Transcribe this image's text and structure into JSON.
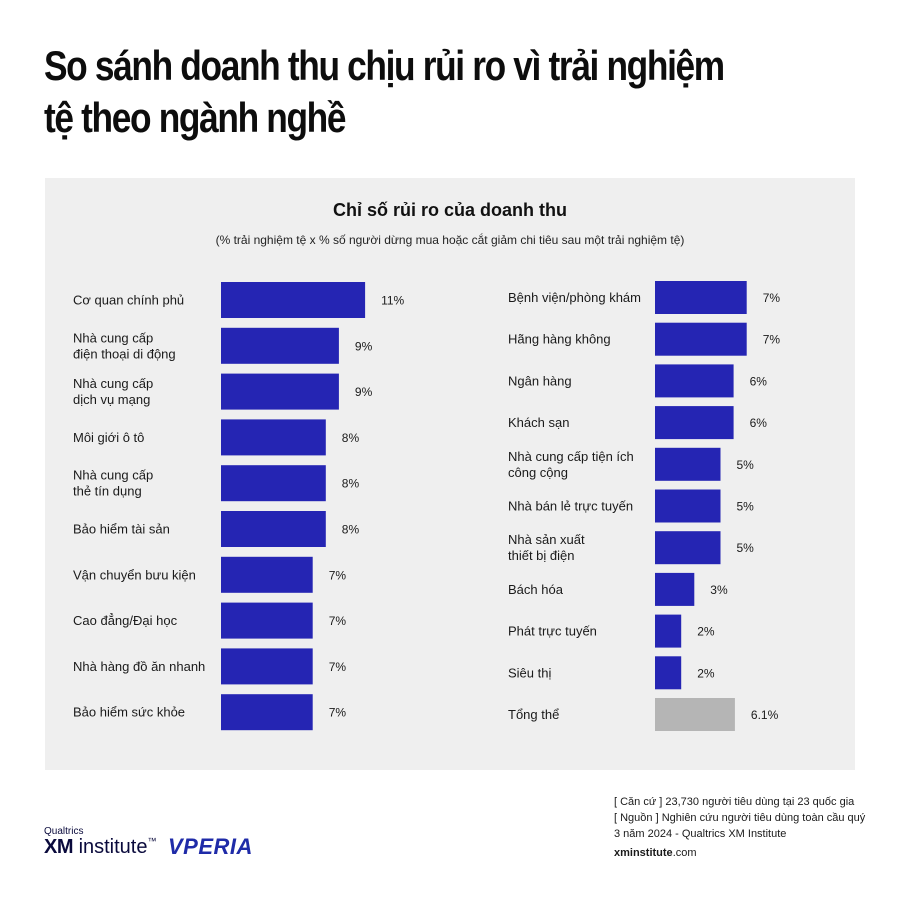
{
  "headline": "So sánh doanh thu chịu rủi ro vì trải nghiệm tệ theo ngành nghề",
  "colors": {
    "bar": "#2525b3",
    "total_bar": "#b5b5b5",
    "panel": "#efefef"
  },
  "chart_data": {
    "type": "bar",
    "orientation": "horizontal",
    "title": "Chỉ số rủi ro của doanh thu",
    "subtitle": "(% trải nghiệm tệ x % số người dừng mua hoặc cắt giảm chi tiêu sau một trải nghiệm tệ)",
    "grid": false,
    "panels": [
      {
        "categories": [
          [
            "Cơ quan chính phủ"
          ],
          [
            "Nhà cung cấp",
            "điện thoại di động"
          ],
          [
            "Nhà cung cấp",
            "dịch vụ mạng"
          ],
          [
            "Môi giới ô tô"
          ],
          [
            "Nhà cung cấp",
            "thẻ tín dụng"
          ],
          [
            "Bảo hiểm tài sản"
          ],
          [
            "Vận chuyển bưu kiện"
          ],
          [
            "Cao đẳng/Đại học"
          ],
          [
            "Nhà hàng đồ ăn nhanh"
          ],
          [
            "Bảo hiểm sức khỏe"
          ]
        ],
        "values": [
          11,
          9,
          9,
          8,
          8,
          8,
          7,
          7,
          7,
          7
        ],
        "labels": [
          "11%",
          "9%",
          "9%",
          "8%",
          "8%",
          "8%",
          "7%",
          "7%",
          "7%",
          "7%"
        ]
      },
      {
        "categories": [
          [
            "Bệnh viện/phòng khám"
          ],
          [
            "Hãng hàng không"
          ],
          [
            "Ngân hàng"
          ],
          [
            "Khách sạn"
          ],
          [
            "Nhà cung cấp tiện ích",
            "công cộng"
          ],
          [
            "Nhà bán lẻ trực tuyến"
          ],
          [
            "Nhà sản xuất",
            "thiết bị điện"
          ],
          [
            "Bách hóa"
          ],
          [
            "Phát trực tuyến"
          ],
          [
            "Siêu thị"
          ],
          [
            "Tổng thể"
          ]
        ],
        "values": [
          7,
          7,
          6,
          6,
          5,
          5,
          5,
          3,
          2,
          2,
          6.1
        ],
        "labels": [
          "7%",
          "7%",
          "6%",
          "6%",
          "5%",
          "5%",
          "5%",
          "3%",
          "2%",
          "2%",
          "6.1%"
        ],
        "highlight_last": true
      }
    ]
  },
  "footer": {
    "basis": "[ Căn cứ ] 23,730 người tiêu dùng tại 23 quốc gia",
    "source": "[ Nguồn ] Nghiên cứu người tiêu dùng toàn cầu quý 3 năm 2024 - Qualtrics XM Institute",
    "site_bold": "xminstitute",
    "site_rest": ".com"
  },
  "logos": {
    "qualtrics": "Qualtrics",
    "xm": "XM",
    "institute": "institute",
    "tm": "™",
    "vperia": "VPERIA"
  }
}
